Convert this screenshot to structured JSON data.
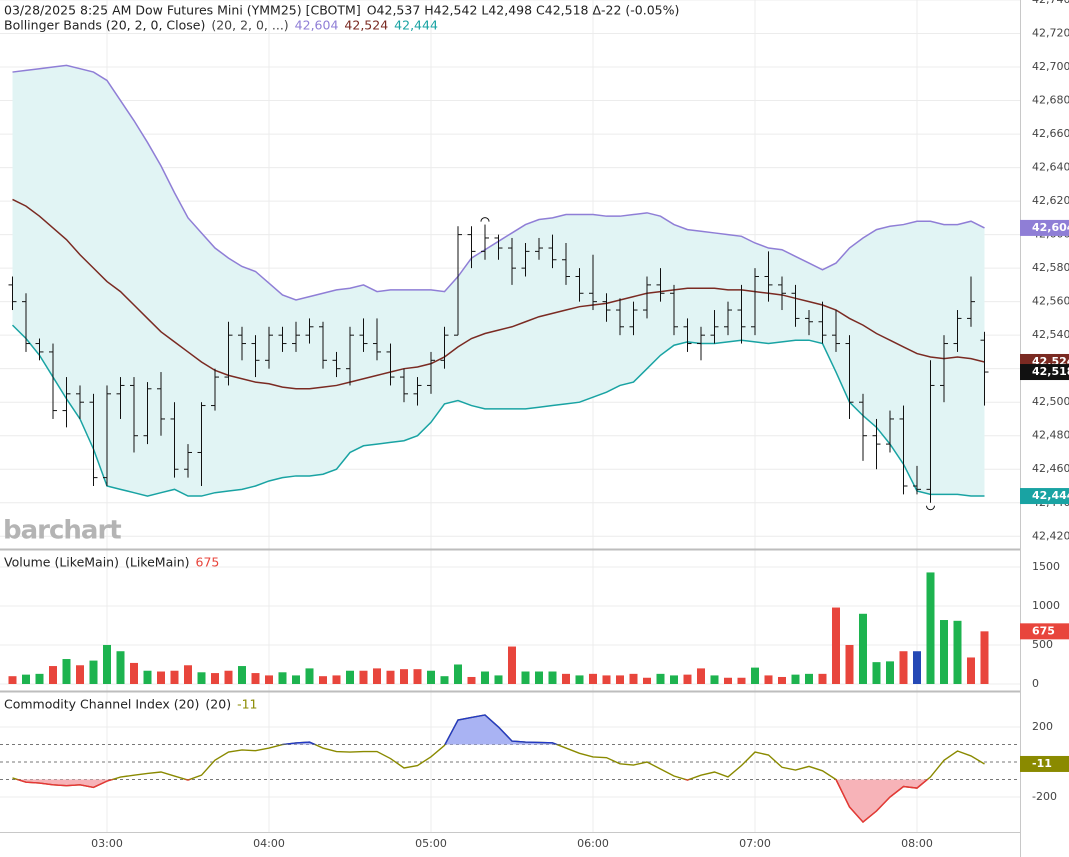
{
  "chart_data": [
    {
      "type": "ohlc",
      "title": "03/28/2025  8:25 AM Dow Futures Mini (YMM25) [CBOTM]",
      "quote": "O42,537 H42,542 L42,498 C42,518 Δ-22 (-0.05%)",
      "watermark": "barchart",
      "color": "#111111",
      "last_label": "42,518",
      "ylim": [
        42413,
        42740
      ],
      "yticks": [
        {
          "value": 42420,
          "label": "42,420"
        },
        {
          "value": 42440,
          "label": "42,440"
        },
        {
          "value": 42460,
          "label": "42,460"
        },
        {
          "value": 42480,
          "label": "42,480"
        },
        {
          "value": 42500,
          "label": "42,500"
        },
        {
          "value": 42520,
          "label": "42,520"
        },
        {
          "value": 42540,
          "label": "42,540"
        },
        {
          "value": 42560,
          "label": "42,560"
        },
        {
          "value": 42580,
          "label": "42,580"
        },
        {
          "value": 42600,
          "label": "42,600"
        },
        {
          "value": 42620,
          "label": "42,620"
        },
        {
          "value": 42640,
          "label": "42,640"
        },
        {
          "value": 42660,
          "label": "42,660"
        },
        {
          "value": 42680,
          "label": "42,680"
        },
        {
          "value": 42700,
          "label": "42,700"
        },
        {
          "value": 42720,
          "label": "42,720"
        },
        {
          "value": 42740,
          "label": "42,740"
        }
      ],
      "open": [
        42570,
        42560,
        42535,
        42530,
        42495,
        42505,
        42500,
        42455,
        42505,
        42510,
        42480,
        42508,
        42490,
        42460,
        42470,
        42498,
        42515,
        42540,
        42535,
        42525,
        42540,
        42535,
        42540,
        42545,
        42525,
        42520,
        42540,
        42535,
        42530,
        42515,
        42505,
        42510,
        42525,
        42540,
        42600,
        42590,
        42598,
        42592,
        42580,
        42590,
        42592,
        42585,
        42575,
        42565,
        42560,
        42555,
        42545,
        42555,
        42570,
        42565,
        42545,
        42535,
        42540,
        42545,
        42555,
        42545,
        42575,
        42570,
        42565,
        42550,
        42548,
        42540,
        42535,
        42500,
        42480,
        42475,
        42490,
        42450,
        42448,
        42510,
        42535,
        42550,
        42537
      ],
      "high": [
        42575,
        42565,
        42538,
        42535,
        42515,
        42510,
        42505,
        42510,
        42515,
        42515,
        42512,
        42518,
        42500,
        42475,
        42500,
        42520,
        42548,
        42545,
        42540,
        42545,
        42545,
        42548,
        42550,
        42548,
        42530,
        42545,
        42550,
        42550,
        42535,
        42520,
        42515,
        42530,
        42545,
        42605,
        42605,
        42606,
        42600,
        42598,
        42595,
        42598,
        42600,
        42595,
        42580,
        42588,
        42565,
        42562,
        42560,
        42575,
        42580,
        42570,
        42550,
        42545,
        42555,
        42560,
        42570,
        42580,
        42590,
        42575,
        42570,
        42555,
        42560,
        42555,
        42540,
        42505,
        42490,
        42495,
        42498,
        42462,
        42525,
        42540,
        42555,
        42575,
        42542
      ],
      "low": [
        42555,
        42530,
        42525,
        42490,
        42485,
        42490,
        42450,
        42450,
        42490,
        42470,
        42475,
        42480,
        42455,
        42455,
        42450,
        42495,
        42510,
        42525,
        42515,
        42520,
        42530,
        42530,
        42535,
        42520,
        42515,
        42510,
        42530,
        42525,
        42510,
        42500,
        42498,
        42505,
        42520,
        42540,
        42580,
        42585,
        42585,
        42570,
        42575,
        42585,
        42580,
        42570,
        42560,
        42555,
        42548,
        42540,
        42540,
        42550,
        42560,
        42540,
        42530,
        42525,
        42535,
        42540,
        42535,
        42540,
        42560,
        42555,
        42545,
        42540,
        42535,
        42530,
        42490,
        42465,
        42460,
        42470,
        42445,
        42445,
        42440,
        42500,
        42530,
        42545,
        42498
      ],
      "close": [
        42560,
        42535,
        42530,
        42495,
        42505,
        42500,
        42455,
        42505,
        42510,
        42480,
        42508,
        42490,
        42460,
        42470,
        42498,
        42515,
        42540,
        42535,
        42525,
        42540,
        42535,
        42540,
        42545,
        42525,
        42520,
        42540,
        42535,
        42530,
        42515,
        42505,
        42510,
        42525,
        42540,
        42600,
        42590,
        42598,
        42592,
        42580,
        42590,
        42592,
        42585,
        42575,
        42565,
        42560,
        42555,
        42545,
        42555,
        42570,
        42565,
        42545,
        42535,
        42540,
        42545,
        42555,
        42545,
        42575,
        42570,
        42565,
        42550,
        42548,
        42540,
        42535,
        42500,
        42480,
        42475,
        42490,
        42450,
        42448,
        42510,
        42535,
        42550,
        42560,
        42518
      ],
      "overlay": "Bollinger Bands (20, 2, 0, Close)",
      "overlay_params": "(20, 2, 0, ...)",
      "band_fill": "#e1f4f4",
      "bands": [
        {
          "color": "#8f7ed6",
          "last_label": "42,604",
          "values": [
            42697,
            42698,
            42699,
            42700,
            42701,
            42699,
            42697,
            42692,
            42680,
            42668,
            42655,
            42641,
            42625,
            42610,
            42601,
            42592,
            42586,
            42581,
            42578,
            42571,
            42564,
            42561,
            42563,
            42565,
            42567,
            42568,
            42570,
            42566,
            42567,
            42567,
            42567,
            42567,
            42566,
            42575,
            42586,
            42591,
            42596,
            42601,
            42606,
            42609,
            42610,
            42612,
            42612,
            42612,
            42611,
            42611,
            42612,
            42613,
            42611,
            42606,
            42603,
            42602,
            42601,
            42600,
            42599,
            42595,
            42592,
            42591,
            42587,
            42583,
            42579,
            42583,
            42592,
            42598,
            42603,
            42605,
            42606,
            42608,
            42608,
            42606,
            42606,
            42608,
            42604
          ]
        },
        {
          "color": "#7a2a22",
          "last_label": "42,524",
          "values": [
            42621,
            42617,
            42611,
            42604,
            42597,
            42588,
            42580,
            42572,
            42566,
            42558,
            42550,
            42542,
            42536,
            42530,
            42524,
            42519,
            42516,
            42514,
            42512,
            42511,
            42509,
            42508,
            42508,
            42509,
            42510,
            42512,
            42514,
            42516,
            42518,
            42520,
            42521,
            42523,
            42527,
            42533,
            42538,
            42541,
            42543,
            42545,
            42548,
            42551,
            42553,
            42555,
            42557,
            42558,
            42559,
            42561,
            42563,
            42565,
            42566,
            42567,
            42568,
            42568,
            42568,
            42567,
            42567,
            42566,
            42565,
            42564,
            42562,
            42560,
            42558,
            42555,
            42550,
            42546,
            42541,
            42537,
            42533,
            42529,
            42527,
            42526,
            42527,
            42526,
            42524
          ]
        },
        {
          "color": "#19a3a3",
          "last_label": "42,444",
          "values": [
            42546,
            42538,
            42528,
            42515,
            42502,
            42490,
            42472,
            42450,
            42448,
            42446,
            42444,
            42446,
            42448,
            42444,
            42444,
            42446,
            42447,
            42448,
            42450,
            42453,
            42455,
            42456,
            42456,
            42457,
            42460,
            42470,
            42474,
            42475,
            42476,
            42477,
            42480,
            42488,
            42499,
            42501,
            42498,
            42496,
            42496,
            42496,
            42496,
            42497,
            42498,
            42499,
            42500,
            42503,
            42506,
            42510,
            42512,
            42520,
            42528,
            42534,
            42536,
            42535,
            42535,
            42536,
            42537,
            42536,
            42535,
            42536,
            42537,
            42537,
            42535,
            42518,
            42500,
            42492,
            42485,
            42475,
            42463,
            42447,
            42445,
            42445,
            42445,
            42444,
            42444
          ]
        }
      ]
    },
    {
      "type": "bar",
      "title": "Volume (LikeMain)",
      "params": "(LikeMain)",
      "last_label": "675",
      "ylim": [
        -77,
        1692
      ],
      "yticks": [
        0,
        500,
        1000,
        1500
      ],
      "values": [
        100,
        120,
        130,
        230,
        320,
        240,
        300,
        500,
        420,
        270,
        170,
        160,
        170,
        240,
        150,
        140,
        170,
        230,
        140,
        110,
        150,
        110,
        200,
        100,
        110,
        170,
        170,
        200,
        170,
        190,
        190,
        170,
        100,
        250,
        90,
        160,
        110,
        480,
        160,
        160,
        160,
        130,
        110,
        130,
        110,
        110,
        130,
        80,
        130,
        110,
        120,
        200,
        110,
        80,
        80,
        210,
        110,
        90,
        120,
        130,
        130,
        980,
        500,
        900,
        280,
        290,
        420,
        420,
        1430,
        820,
        810,
        340,
        675
      ],
      "colors": [
        "#e8453c",
        "#1db34f",
        "#1db34f",
        "#e8453c",
        "#1db34f",
        "#e8453c",
        "#1db34f",
        "#1db34f",
        "#1db34f",
        "#e8453c",
        "#1db34f",
        "#e8453c",
        "#e8453c",
        "#e8453c",
        "#1db34f",
        "#e8453c",
        "#e8453c",
        "#1db34f",
        "#e8453c",
        "#e8453c",
        "#1db34f",
        "#1db34f",
        "#1db34f",
        "#e8453c",
        "#e8453c",
        "#1db34f",
        "#e8453c",
        "#e8453c",
        "#e8453c",
        "#e8453c",
        "#e8453c",
        "#1db34f",
        "#1db34f",
        "#1db34f",
        "#e8453c",
        "#1db34f",
        "#1db34f",
        "#e8453c",
        "#1db34f",
        "#1db34f",
        "#1db34f",
        "#e8453c",
        "#1db34f",
        "#e8453c",
        "#e8453c",
        "#e8453c",
        "#e8453c",
        "#e8453c",
        "#1db34f",
        "#1db34f",
        "#e8453c",
        "#e8453c",
        "#1db34f",
        "#e8453c",
        "#e8453c",
        "#1db34f",
        "#e8453c",
        "#e8453c",
        "#1db34f",
        "#1db34f",
        "#e8453c",
        "#e8453c",
        "#e8453c",
        "#1db34f",
        "#1db34f",
        "#1db34f",
        "#e8453c",
        "#2448b5",
        "#1db34f",
        "#1db34f",
        "#1db34f",
        "#e8453c",
        "#e8453c"
      ]
    },
    {
      "type": "line",
      "title": "Commodity Channel Index (20)",
      "params": "(20)",
      "last_label": "-11",
      "color": "#8a8a00",
      "above_color": "#2238c8",
      "above_fill": "#a9b3f3",
      "below_color": "#e8333a",
      "below_fill": "#f7b3b8",
      "levels": [
        -100,
        0,
        100
      ],
      "ylim": [
        -400,
        389
      ],
      "yticks": [
        -200,
        200
      ],
      "xlim": [
        -0.926,
        74.63
      ],
      "xticks": [
        {
          "value": 7,
          "label": "03:00"
        },
        {
          "value": 19,
          "label": "04:00"
        },
        {
          "value": 31,
          "label": "05:00"
        },
        {
          "value": 43,
          "label": "06:00"
        },
        {
          "value": 55,
          "label": "07:00"
        },
        {
          "value": 67,
          "label": "08:00"
        }
      ],
      "values": [
        -91,
        -115,
        -120,
        -130,
        -135,
        -130,
        -145,
        -109,
        -86,
        -75,
        -65,
        -57,
        -80,
        -103,
        -75,
        11,
        57,
        69,
        65,
        80,
        100,
        109,
        114,
        80,
        60,
        57,
        60,
        60,
        20,
        -34,
        -20,
        30,
        95,
        240,
        255,
        269,
        200,
        120,
        114,
        112,
        110,
        80,
        50,
        29,
        25,
        -10,
        -17,
        0,
        -40,
        -80,
        -103,
        -75,
        -57,
        -85,
        -20,
        57,
        40,
        -30,
        -46,
        -25,
        -50,
        -100,
        -257,
        -343,
        -280,
        -200,
        -140,
        -149,
        -85,
        10,
        63,
        35,
        -11
      ]
    }
  ]
}
